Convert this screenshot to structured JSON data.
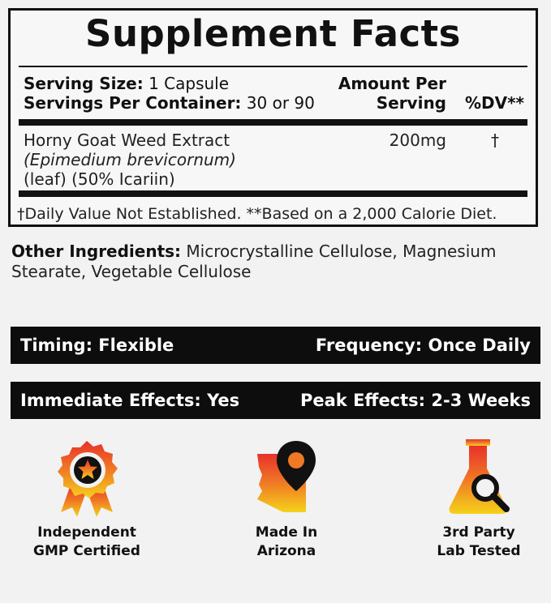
{
  "facts": {
    "title": "Supplement Facts",
    "serving_size_label": "Serving Size:",
    "serving_size_value": "1 Capsule",
    "servings_per_container_label": "Servings Per Container:",
    "servings_per_container_value": "30 or 90",
    "amount_header_line1": "Amount Per",
    "amount_header_line2": "Serving",
    "dv_header": "%DV**",
    "ingredient": {
      "name": "Horny Goat Weed Extract",
      "latin": "(Epimedium brevicornum)",
      "detail": "(leaf) (50% Icariin)",
      "amount": "200mg",
      "dv": "†"
    },
    "footnote": "†Daily Value Not Established. **Based on a 2,000 Calorie Diet."
  },
  "other_ingredients": {
    "label": "Other Ingredients:",
    "text": "Microcrystalline Cellulose, Magnesium Stearate, Vegetable Cellulose"
  },
  "info_bars": [
    {
      "left": "Timing: Flexible",
      "right": "Frequency: Once Daily"
    },
    {
      "left": "Immediate Effects: Yes",
      "right": "Peak Effects: 2-3 Weeks"
    }
  ],
  "badges": [
    {
      "icon": "award-ribbon-star-icon",
      "line1": "Independent",
      "line2": "GMP Certified"
    },
    {
      "icon": "arizona-map-pin-icon",
      "line1": "Made In",
      "line2": "Arizona"
    },
    {
      "icon": "lab-flask-magnifier-icon",
      "line1": "3rd Party",
      "line2": "Lab Tested"
    }
  ],
  "colors": {
    "gradient_top": "#e8312b",
    "gradient_mid": "#f07a24",
    "gradient_bottom": "#f5d21b",
    "dark": "#111111"
  }
}
